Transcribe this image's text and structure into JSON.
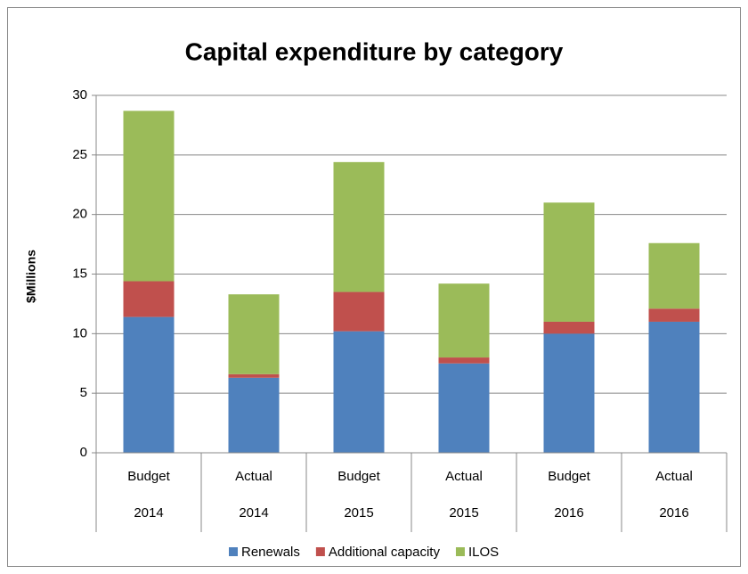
{
  "chart_data": {
    "type": "stacked_bar",
    "title": "Capital expenditure by category",
    "y_label": "$Millions",
    "categories": [
      [
        "Budget",
        "2014"
      ],
      [
        "Actual",
        "2014"
      ],
      [
        "Budget",
        "2015"
      ],
      [
        "Actual",
        "2015"
      ],
      [
        "Budget",
        "2016"
      ],
      [
        "Actual",
        "2016"
      ]
    ],
    "series": [
      {
        "name": "Renewals",
        "color": "#4f81bd",
        "values": [
          11.4,
          6.3,
          10.2,
          7.5,
          10.0,
          11.0
        ]
      },
      {
        "name": "Additional capacity",
        "color": "#c0504d",
        "values": [
          3.0,
          0.3,
          3.3,
          0.5,
          1.0,
          1.1
        ]
      },
      {
        "name": "ILOS",
        "color": "#9bbb59",
        "values": [
          14.3,
          6.7,
          10.9,
          6.2,
          10.0,
          5.5
        ]
      }
    ],
    "ylim": [
      0,
      30
    ],
    "yticks": [
      0,
      5,
      10,
      15,
      20,
      25,
      30
    ],
    "grid": true,
    "legend": "bottom"
  }
}
